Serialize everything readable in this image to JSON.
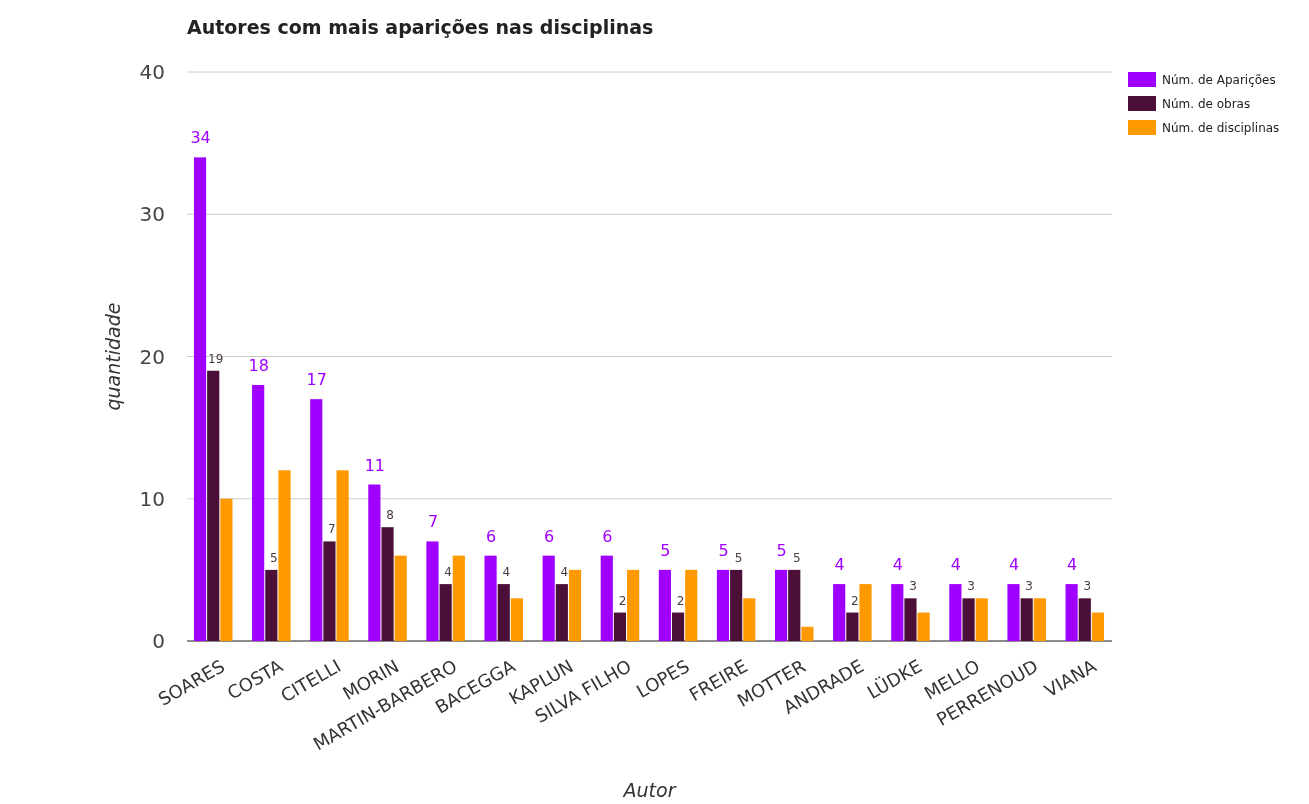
{
  "chart_data": {
    "type": "bar",
    "title": "Autores com mais aparições nas disciplinas",
    "xlabel": "Autor",
    "ylabel": "quantidade",
    "categories": [
      "SOARES",
      "COSTA",
      "CITELLI",
      "MORIN",
      "MARTIN-BARBERO",
      "BACEGGA",
      "KAPLUN",
      "SILVA FILHO",
      "LOPES",
      "FREIRE",
      "MOTTER",
      "ANDRADE",
      "LÜDKE",
      "MELLO",
      "PERRENOUD",
      "VIANA"
    ],
    "series": [
      {
        "name": "Núm. de Aparições",
        "color": "#a000ff",
        "values": [
          34,
          18,
          17,
          11,
          7,
          6,
          6,
          6,
          5,
          5,
          5,
          4,
          4,
          4,
          4,
          4
        ],
        "value_labels": [
          "34",
          "18",
          "17",
          "11",
          "7",
          "6",
          "6",
          "6",
          "5",
          "5",
          "5",
          "4",
          "4",
          "4",
          "4",
          "4"
        ]
      },
      {
        "name": "Núm. de obras",
        "color": "#4b0f38",
        "values": [
          19,
          5,
          7,
          8,
          4,
          4,
          4,
          2,
          2,
          5,
          5,
          2,
          3,
          3,
          3,
          3
        ],
        "value_labels": [
          "19",
          "5",
          "7",
          "8",
          "4",
          "4",
          "4",
          "2",
          "2",
          "5",
          "5",
          "2",
          "3",
          "3",
          "3",
          "3"
        ]
      },
      {
        "name": "Núm. de disciplinas",
        "color": "#ff9900",
        "values": [
          10,
          12,
          12,
          6,
          6,
          3,
          5,
          5,
          5,
          3,
          1,
          4,
          2,
          3,
          3,
          2
        ]
      }
    ],
    "ylim": [
      0,
      40
    ],
    "yticks": [
      0,
      10,
      20,
      30,
      40
    ],
    "grid": "y",
    "legend": "top right"
  }
}
